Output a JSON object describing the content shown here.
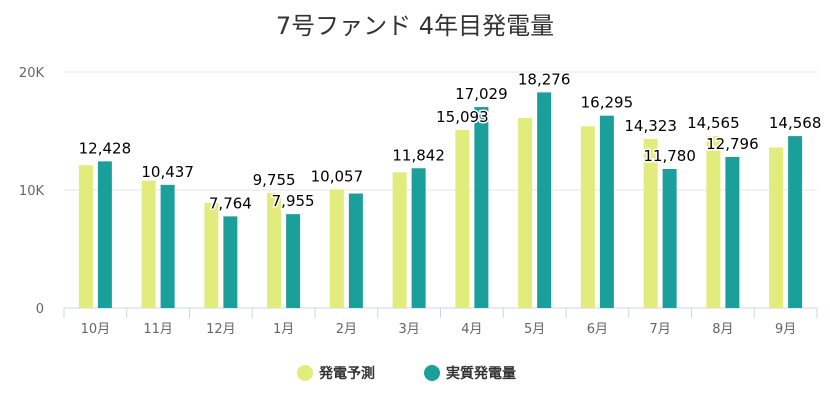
{
  "chart_data": {
    "type": "bar",
    "title": "7号ファンド 4年目発電量",
    "categories": [
      "10月",
      "11月",
      "12月",
      "1月",
      "2月",
      "3月",
      "4月",
      "5月",
      "6月",
      "7月",
      "8月",
      "9月"
    ],
    "series": [
      {
        "name": "発電予測",
        "color": "#e2ec7c",
        "values": [
          12100,
          10800,
          8900,
          9755,
          10057,
          11500,
          15093,
          16100,
          15400,
          14323,
          14565,
          13600
        ],
        "labels": [
          "",
          "",
          "",
          "9,755",
          "10,057",
          "",
          "15,093",
          "",
          "",
          "14,323",
          "14,565",
          ""
        ]
      },
      {
        "name": "実質発電量",
        "color": "#1b9f9a",
        "values": [
          12428,
          10437,
          7764,
          7955,
          9700,
          11842,
          17029,
          18276,
          16295,
          11780,
          12796,
          14568
        ],
        "labels": [
          "12,428",
          "10,437",
          "7,764",
          "7,955",
          "",
          "11,842",
          "17,029",
          "18,276",
          "16,295",
          "11,780",
          "12,796",
          "14,568"
        ]
      }
    ],
    "yticks": [
      {
        "value": 0,
        "label": "0"
      },
      {
        "value": 10000,
        "label": "10K"
      },
      {
        "value": 20000,
        "label": "20K"
      }
    ],
    "ylim": [
      0,
      20000
    ],
    "grid": true,
    "legend_position": "bottom"
  }
}
